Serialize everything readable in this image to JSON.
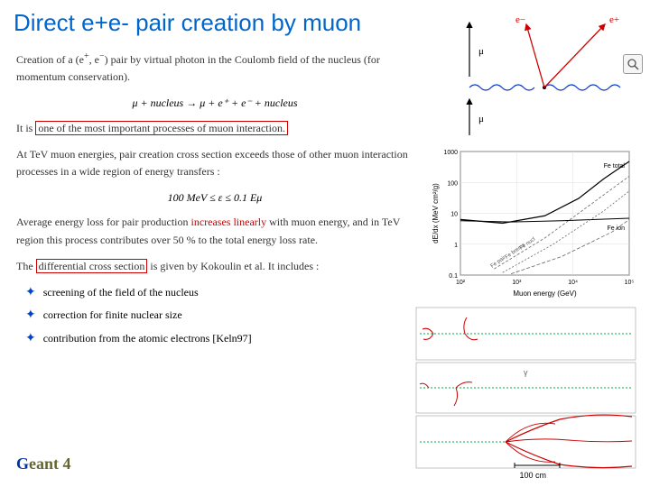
{
  "title": "Direct e+e- pair creation by muon",
  "para1_pre": "Creation of a (e",
  "para1_sup1": "+",
  "para1_mid1": ", e",
  "para1_sup2": "−",
  "para1_post": ") pair by virtual photon in the Coulomb field of the nucleus (for momentum conservation).",
  "formula1": "μ + nucleus → μ + e⁺ + e⁻ + nucleus",
  "para2_pre": "It is ",
  "para2_boxed": "one of the most important processes of muon interaction.",
  "para3": "At TeV muon energies, pair creation cross section exceeds those of other muon interaction processes in a wide region of energy transfers :",
  "formula2": "100 MeV ≤ ε ≤ 0.1 Eμ",
  "para4_pre": "Average energy loss for pair production ",
  "para4_red": "increases linearly",
  "para4_post": " with muon energy, and in TeV region this process contributes over 50 % to the total energy loss rate.",
  "para5_pre": "The ",
  "para5_boxed": "differential cross section",
  "para5_post": " is given by Kokoulin et al. It includes :",
  "bullet1": "screening of the field of the nucleus",
  "bullet2": "correction for finite nuclear size",
  "bullet3": "contribution from the atomic electrons [Keln97]",
  "footer_g": "G",
  "footer_rest": "eant 4",
  "scale_label": "100 cm",
  "feynman": {
    "eminus": "e−",
    "eplus": "e+",
    "mu1": "μ",
    "mu2": "μ",
    "colors": {
      "electron": "#cc0000",
      "muon": "#000000",
      "photon": "#0033cc"
    }
  },
  "chart": {
    "ylabel": "dE/dx (MeV cm²/g)",
    "xlabel": "Muon energy (GeV)",
    "xticks": [
      "10²",
      "10³",
      "10⁴",
      "10⁵"
    ],
    "yticks": [
      "0.1",
      "1",
      "10",
      "100",
      "1000"
    ],
    "legend_top": "Fe total",
    "legend_mid": "Fe ion",
    "legend_items": [
      "Fe pair",
      "Fe brems",
      "Fe nucl"
    ],
    "series": {
      "total": {
        "color": "#000000",
        "width": 1.2,
        "points": [
          [
            0,
            0.45
          ],
          [
            0.25,
            0.42
          ],
          [
            0.5,
            0.48
          ],
          [
            0.7,
            0.62
          ],
          [
            0.85,
            0.78
          ],
          [
            1.0,
            0.92
          ]
        ]
      },
      "ion": {
        "color": "#000000",
        "width": 1.0,
        "points": [
          [
            0,
            0.44
          ],
          [
            0.3,
            0.43
          ],
          [
            0.6,
            0.44
          ],
          [
            1.0,
            0.46
          ]
        ]
      },
      "pair": {
        "color": "#666666",
        "width": 0.8,
        "dash": "3,2",
        "points": [
          [
            0.2,
            0.05
          ],
          [
            0.5,
            0.3
          ],
          [
            0.8,
            0.6
          ],
          [
            1.0,
            0.8
          ]
        ]
      },
      "brems": {
        "color": "#666666",
        "width": 0.8,
        "dash": "2,2",
        "points": [
          [
            0.25,
            0.02
          ],
          [
            0.55,
            0.25
          ],
          [
            0.85,
            0.52
          ],
          [
            1.0,
            0.68
          ]
        ]
      },
      "nucl": {
        "color": "#666666",
        "width": 0.8,
        "dash": "4,2",
        "points": [
          [
            0.3,
            0.01
          ],
          [
            0.6,
            0.15
          ],
          [
            0.9,
            0.35
          ],
          [
            1.0,
            0.45
          ]
        ]
      }
    },
    "grid_color": "#dddddd",
    "bg": "#ffffff",
    "axis_color": "#000000",
    "font_size": 7
  },
  "tracks": {
    "green": "#00aa44",
    "red": "#cc0000",
    "gray": "#999999",
    "frame": "#888888"
  }
}
